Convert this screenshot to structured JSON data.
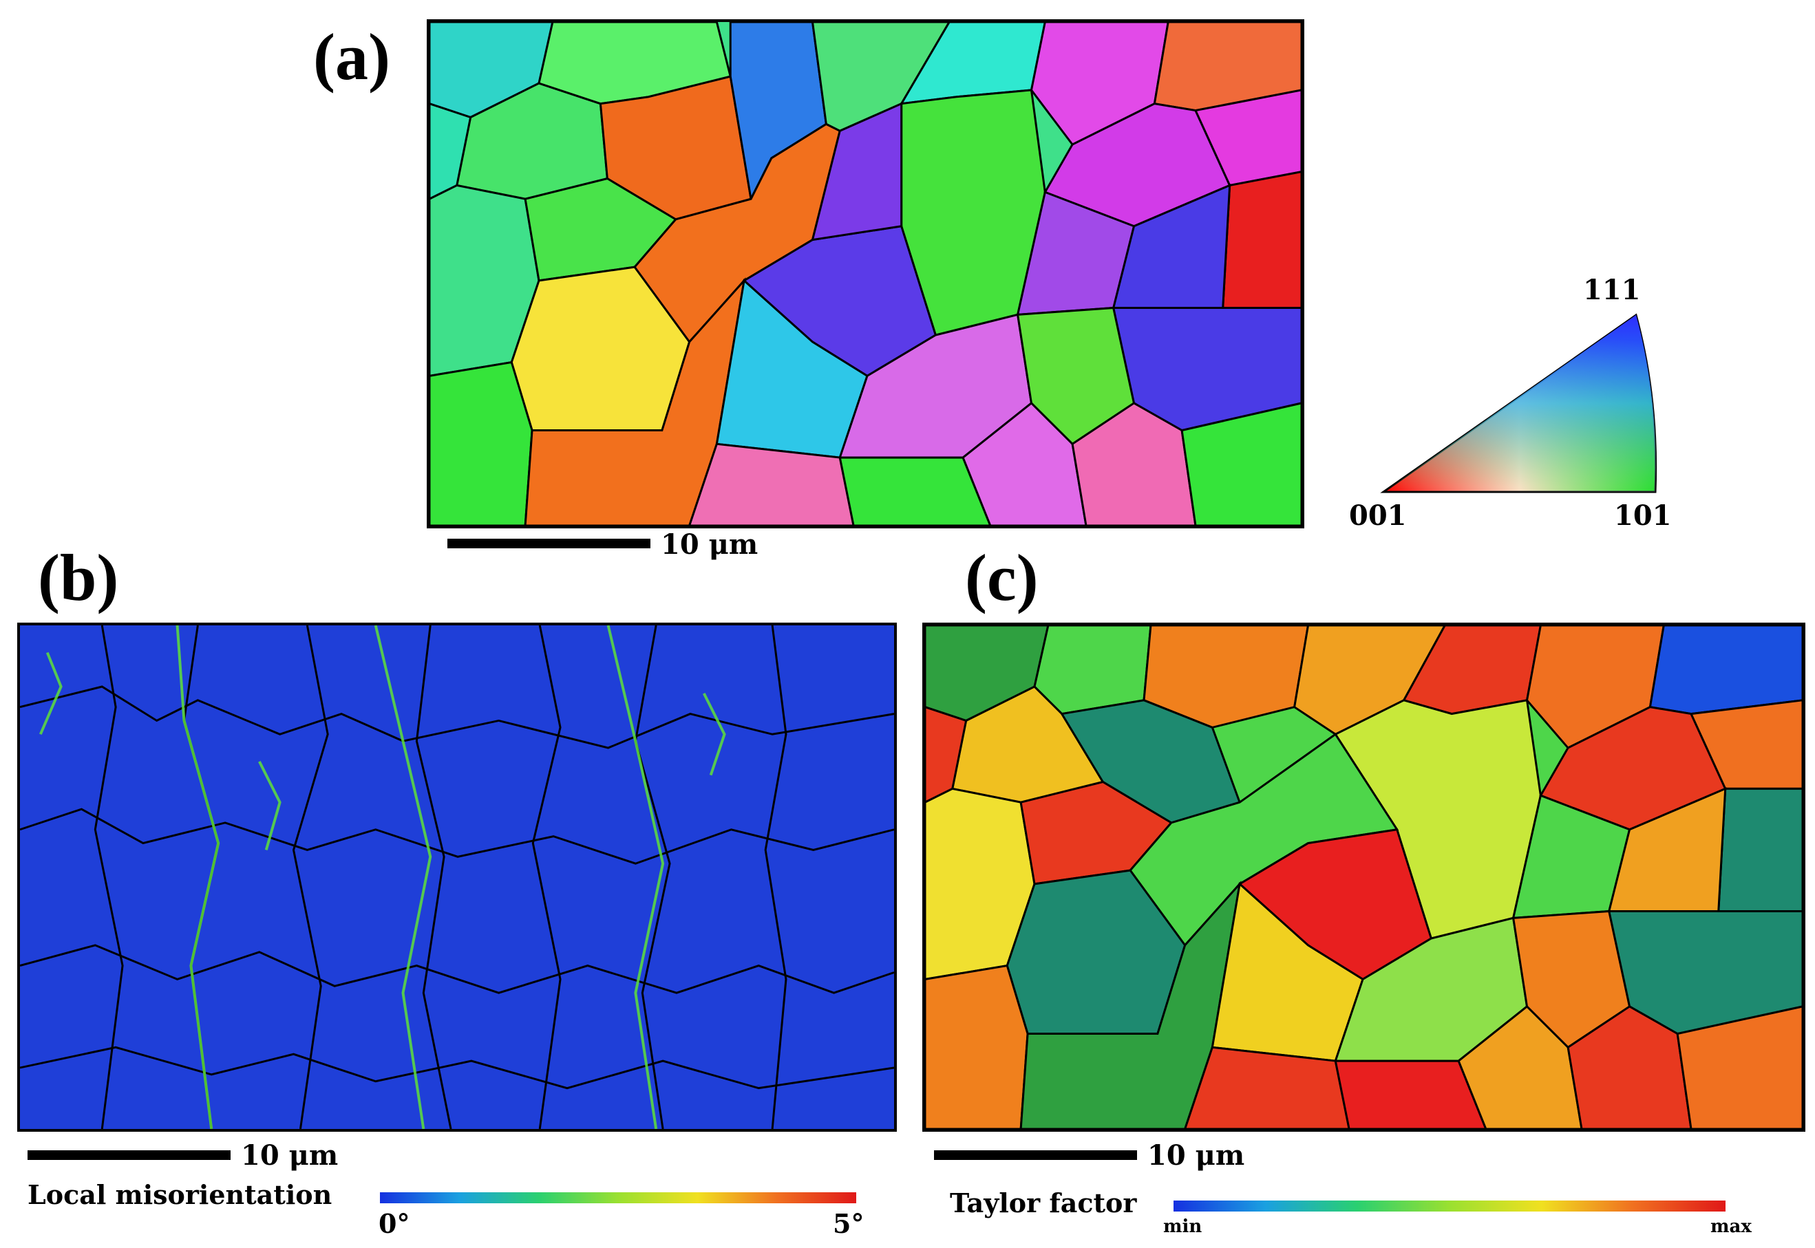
{
  "panels": {
    "a": {
      "label": "(a)",
      "scale_text": "10 μm",
      "ipf_key": {
        "top": "111",
        "left": "001",
        "right": "101"
      }
    },
    "b": {
      "label": "(b)",
      "scale_text": "10 μm",
      "legend_title": "Local misorientation",
      "colorbar_min": "0°",
      "colorbar_max": "5°"
    },
    "c": {
      "label": "(c)",
      "scale_text": "10 μm",
      "legend_title": "Taylor factor",
      "colorbar_min": "min",
      "colorbar_max": "max"
    }
  },
  "colors": {
    "green": "#35e43a",
    "magenta": "#d23be8",
    "blue": "#4a3be6",
    "cyan": "#2ec7e8",
    "orange": "#f2701d",
    "yellow": "#f7e33a",
    "red": "#e81f1f",
    "pink": "#ef6fb4",
    "misorientation_bg": "#1f3fd8",
    "taylor_red": "#e8391f",
    "taylor_orange": "#f0801d",
    "taylor_green": "#4ed64a",
    "taylor_teal": "#1e8a70"
  }
}
